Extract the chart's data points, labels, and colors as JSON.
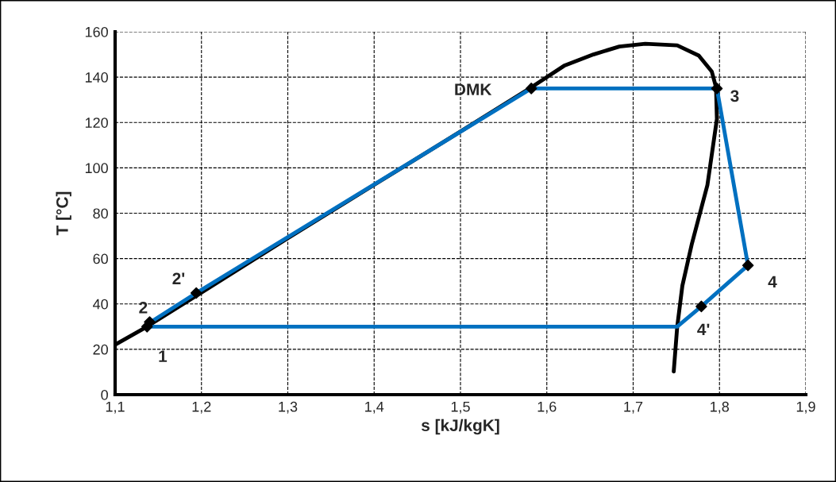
{
  "chart_data": {
    "type": "line",
    "xlabel": "s [kJ/kgK]",
    "ylabel": "T [°C]",
    "xlim": [
      1.1,
      1.9
    ],
    "ylim": [
      0,
      160
    ],
    "xticks": [
      {
        "value": 1.1,
        "label": "1,1"
      },
      {
        "value": 1.2,
        "label": "1,2"
      },
      {
        "value": 1.3,
        "label": "1,3"
      },
      {
        "value": 1.4,
        "label": "1,4"
      },
      {
        "value": 1.5,
        "label": "1,5"
      },
      {
        "value": 1.6,
        "label": "1,6"
      },
      {
        "value": 1.7,
        "label": "1,7"
      },
      {
        "value": 1.8,
        "label": "1,8"
      },
      {
        "value": 1.9,
        "label": "1,9"
      }
    ],
    "yticks": [
      0,
      20,
      40,
      60,
      80,
      100,
      120,
      140,
      160
    ],
    "grid": true,
    "legend": false,
    "series": [
      {
        "color": "#000000",
        "marker": "none",
        "x": [
          1.1,
          1.137,
          1.2,
          1.3,
          1.4,
          1.5,
          1.582,
          1.62,
          1.654,
          1.684,
          1.714,
          1.751,
          1.776,
          1.791,
          1.796,
          1.797,
          1.786,
          1.768,
          1.757,
          1.751,
          1.747
        ],
        "values": [
          22,
          30,
          45,
          69,
          92.5,
          116,
          135.5,
          145,
          150,
          153.5,
          154.7,
          154,
          149.5,
          142.5,
          135.5,
          121.5,
          92.4,
          66.5,
          48,
          29.8,
          10.2
        ]
      },
      {
        "color": "#0070c0",
        "marker": "none",
        "x": [
          1.137,
          1.194,
          1.582,
          1.797,
          1.833,
          1.779,
          1.751,
          1.137
        ],
        "values": [
          31,
          44.8,
          135,
          135,
          57,
          38.9,
          30,
          30
        ]
      },
      {
        "type": "scatter",
        "color": "#000000",
        "marker": "diamond",
        "x": [
          1.137,
          1.14,
          1.194,
          1.582,
          1.797,
          1.833,
          1.779
        ],
        "values": [
          30,
          32,
          44.8,
          135,
          135,
          57,
          38.9
        ]
      }
    ],
    "annotations": [
      {
        "text": "1",
        "x": 1.137,
        "y": 30
      },
      {
        "text": "2",
        "x": 1.14,
        "y": 32
      },
      {
        "text": "2'",
        "x": 1.194,
        "y": 44.8
      },
      {
        "text": "DMK",
        "x": 1.582,
        "y": 135
      },
      {
        "text": "3",
        "x": 1.797,
        "y": 135
      },
      {
        "text": "4",
        "x": 1.833,
        "y": 57
      },
      {
        "text": "4'",
        "x": 1.779,
        "y": 38.9
      }
    ]
  }
}
